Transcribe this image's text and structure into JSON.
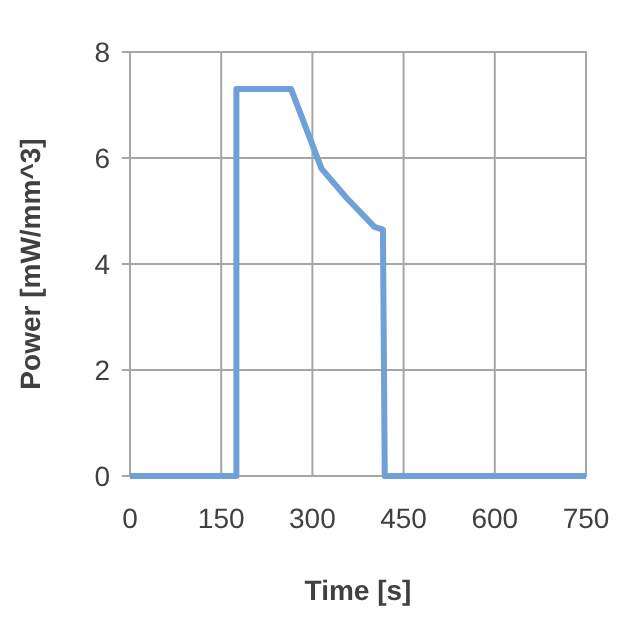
{
  "chart_data": {
    "type": "line",
    "xlabel": "Time [s]",
    "ylabel": "Power [mW/mm^3]",
    "x": [
      0,
      175,
      175,
      265,
      315,
      356,
      402,
      416,
      419,
      750
    ],
    "series": [
      {
        "color": "#6fa0d8",
        "values": [
          0,
          0,
          7.3,
          7.3,
          5.8,
          5.25,
          4.7,
          4.65,
          0,
          0
        ]
      }
    ],
    "xlim": [
      0,
      750
    ],
    "xticks": [
      0,
      150,
      300,
      450,
      600,
      750
    ],
    "ylim": [
      0,
      8
    ],
    "yticks": [
      0,
      2,
      4,
      6,
      8
    ],
    "grid": true
  }
}
